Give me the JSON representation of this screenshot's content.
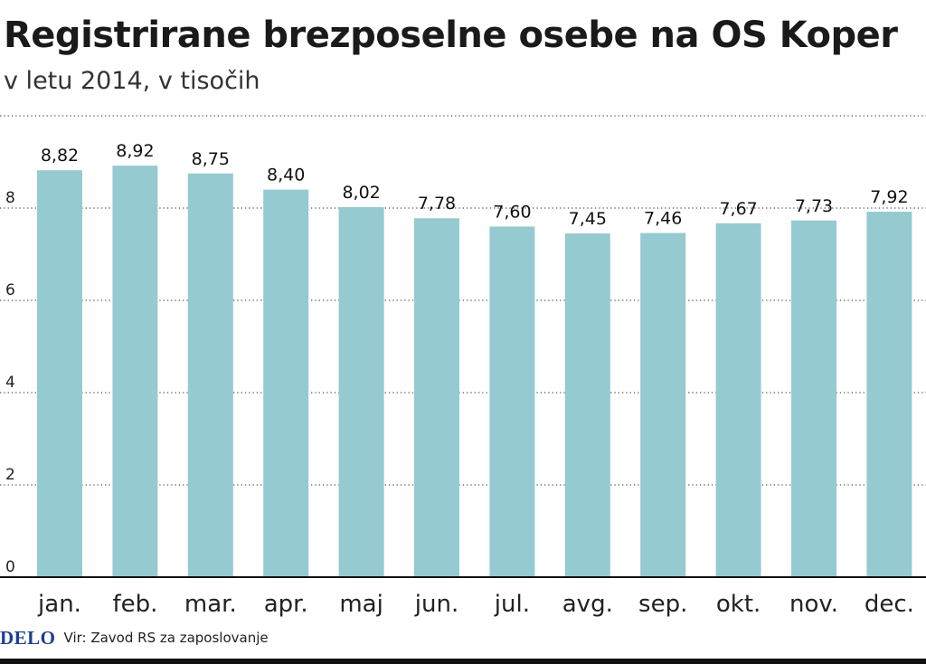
{
  "chart_data": {
    "type": "bar",
    "title": "Registrirane brezposelne osebe na OS Koper",
    "subtitle": "v letu 2014, v tisočih",
    "categories": [
      "jan.",
      "feb.",
      "mar.",
      "apr.",
      "maj",
      "jun.",
      "jul.",
      "avg.",
      "sep.",
      "okt.",
      "nov.",
      "dec."
    ],
    "values": [
      8.82,
      8.92,
      8.75,
      8.4,
      8.02,
      7.78,
      7.6,
      7.45,
      7.46,
      7.67,
      7.73,
      7.92
    ],
    "value_labels": [
      "8,82",
      "8,92",
      "8,75",
      "8,40",
      "8,02",
      "7,78",
      "7,60",
      "7,45",
      "7,46",
      "7,67",
      "7,73",
      "7,92"
    ],
    "yticks": [
      0,
      2,
      4,
      6,
      8
    ],
    "ylim": [
      0,
      10
    ],
    "grid": "dotted",
    "bar_color": "#95cad1",
    "xlabel": "",
    "ylabel": ""
  },
  "footer": {
    "logo_text": "DELO",
    "source": "Vir: Zavod RS za zaposlovanje"
  }
}
